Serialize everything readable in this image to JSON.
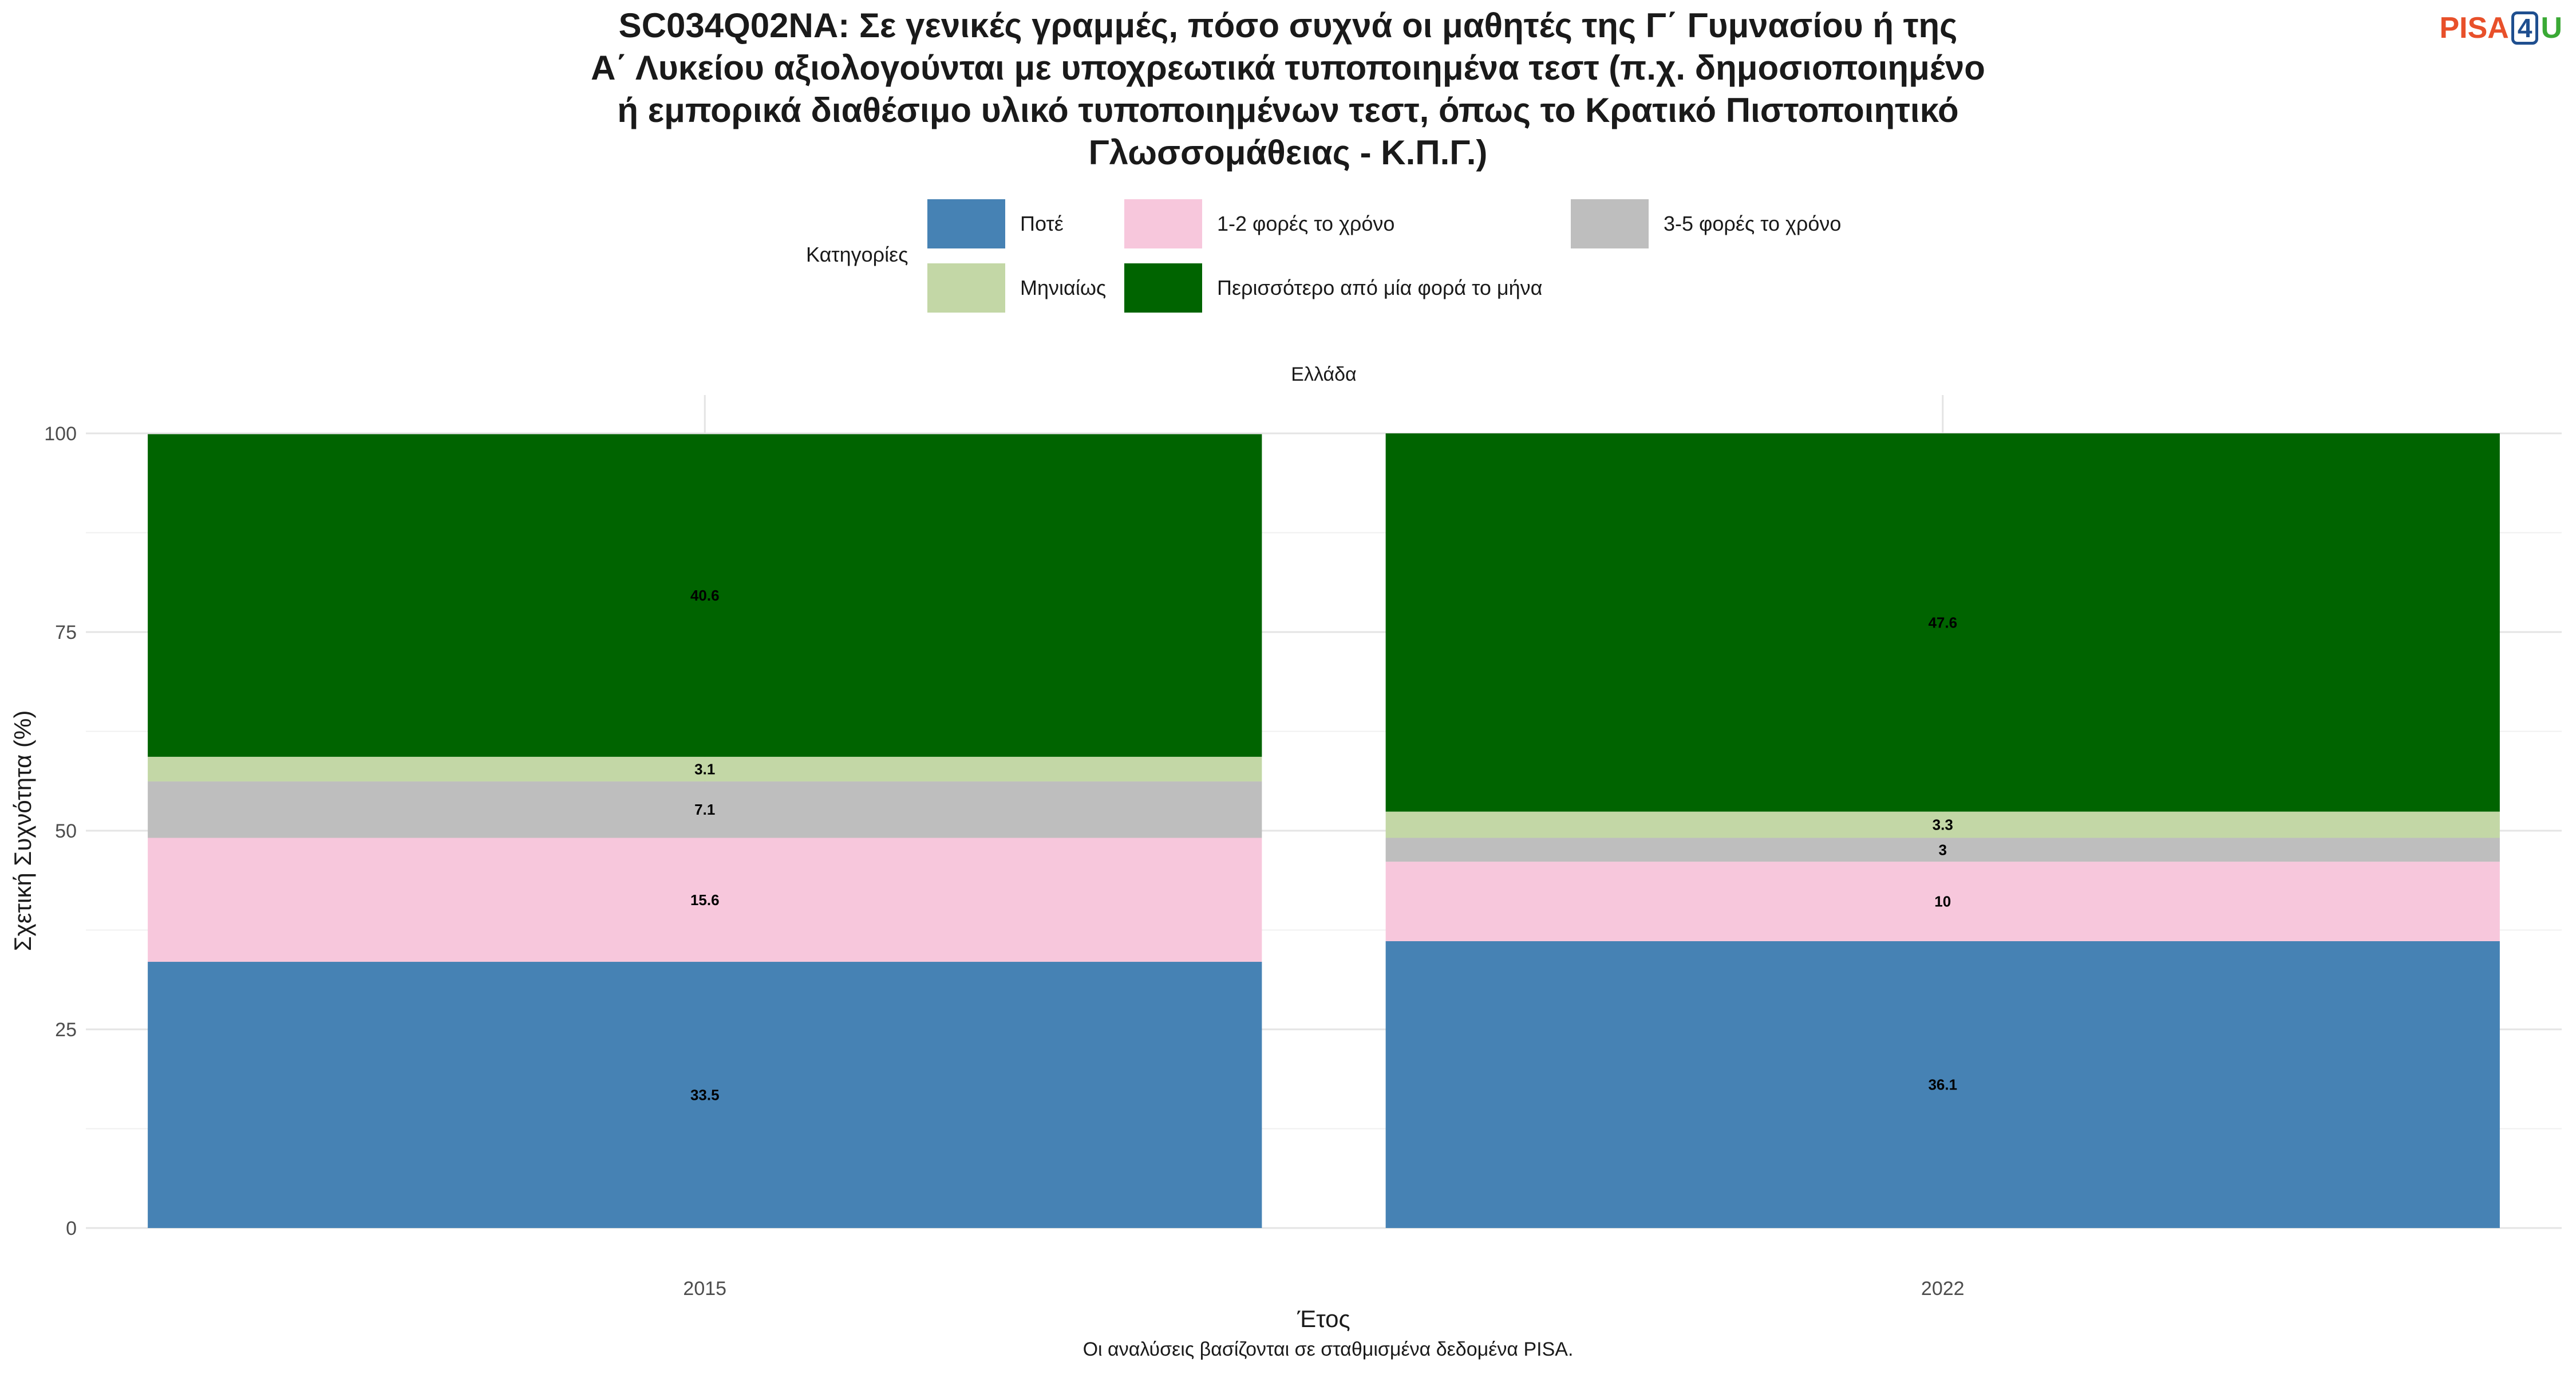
{
  "title": "SC034Q02NA: Σε γενικές γραμμές, πόσο συχνά οι μαθητές της Γ΄ Γυμνασίου ή της\nΑ΄ Λυκείου αξιολογούνται με υποχρεωτικά τυποποιημένα τεστ (π.χ. δημοσιοποιημένο\nή εμπορικά διαθέσιμο υλικό τυποποιημένων τεστ, όπως το Κρατικό Πιστοποιητικό\nΓλωσσομάθειας - Κ.Π.Γ.)",
  "logo": {
    "part1": "PISA",
    "part2": "4",
    "part3": "U"
  },
  "legend": {
    "title": "Κατηγορίες",
    "items": [
      {
        "label": "Ποτέ",
        "color": "#4682b4"
      },
      {
        "label": "1-2 φορές το χρόνο",
        "color": "#f7c7dc"
      },
      {
        "label": "3-5 φορές το χρόνο",
        "color": "#bebebe"
      },
      {
        "label": "Μηνιαίως",
        "color": "#c3d7a6"
      },
      {
        "label": "Περισσότερο από μία φορά το μήνα",
        "color": "#006400"
      }
    ]
  },
  "caption": "Οι αναλύσεις βασίζονται σε σταθμισμένα δεδομένα PISA.",
  "chart_data": {
    "type": "bar",
    "stacked": true,
    "facet": "Ελλάδα",
    "categories": [
      "2015",
      "2022"
    ],
    "series": [
      {
        "name": "Ποτέ",
        "values": [
          33.5,
          36.1
        ],
        "labels": [
          "33.5",
          "36.1"
        ],
        "color": "#4682b4"
      },
      {
        "name": "1-2 φορές το χρόνο",
        "values": [
          15.6,
          10
        ],
        "labels": [
          "15.6",
          "10"
        ],
        "color": "#f7c7dc"
      },
      {
        "name": "3-5 φορές το χρόνο",
        "values": [
          7.1,
          3
        ],
        "labels": [
          "7.1",
          "3"
        ],
        "color": "#bebebe"
      },
      {
        "name": "Μηνιαίως",
        "values": [
          3.1,
          3.3
        ],
        "labels": [
          "3.1",
          "3.3"
        ],
        "color": "#c3d7a6"
      },
      {
        "name": "Περισσότερο από μία φορά το μήνα",
        "values": [
          40.6,
          47.6
        ],
        "labels": [
          "40.6",
          "47.6"
        ],
        "color": "#006400"
      }
    ],
    "xlabel": "Έτος",
    "ylabel": "Σχετική Συχνότητα (%)",
    "ylim": [
      0,
      100
    ],
    "yticks": [
      "0",
      "25",
      "50",
      "75",
      "100"
    ],
    "grid": true,
    "legend_position": "top"
  }
}
